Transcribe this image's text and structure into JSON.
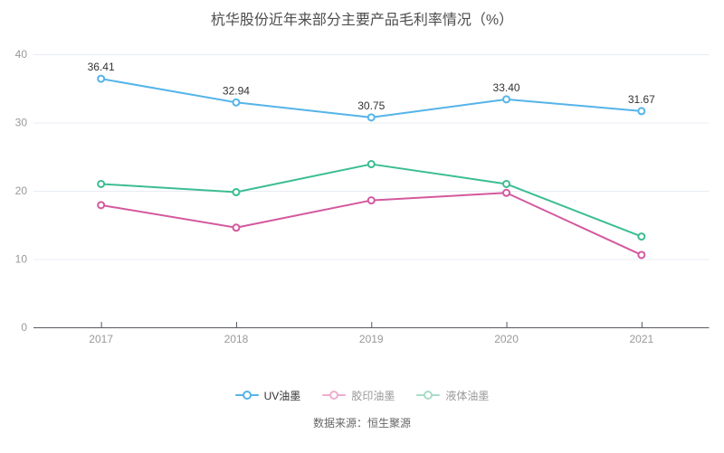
{
  "chart_data": {
    "type": "line",
    "title": "杭华股份近年来部分主要产品毛利率情况（%）",
    "categories": [
      "2017",
      "2018",
      "2019",
      "2020",
      "2021"
    ],
    "series": [
      {
        "name": "UV油墨",
        "color": "#54b4e9",
        "values": [
          36.41,
          32.94,
          30.75,
          33.4,
          31.67
        ],
        "point_labels": [
          "36.41",
          "32.94",
          "30.75",
          "33.40",
          "31.67"
        ],
        "legend_icon_color": "#54b4e9",
        "legend_text_color": "#333333"
      },
      {
        "name": "胶印油墨",
        "color": "#d4589e",
        "values": [
          17.9,
          14.6,
          18.6,
          19.7,
          10.6
        ],
        "point_labels": null,
        "legend_icon_color": "#eeadd0",
        "legend_text_color": "#999999"
      },
      {
        "name": "液体油墨",
        "color": "#3bbd92",
        "values": [
          21.0,
          19.8,
          23.9,
          21.0,
          13.3
        ],
        "point_labels": null,
        "legend_icon_color": "#a8dcc8",
        "legend_text_color": "#999999"
      }
    ],
    "yticks": [
      0,
      10,
      20,
      30,
      40
    ],
    "ylim": [
      0,
      40
    ],
    "grid": true,
    "legend_position": "bottom",
    "source_note": "数据来源：恒生聚源",
    "point_label_color": "#333333",
    "axis_tick_label_color": "#999999",
    "gridline_color": "#e8edf3",
    "axis_line_color": "#555a61"
  }
}
